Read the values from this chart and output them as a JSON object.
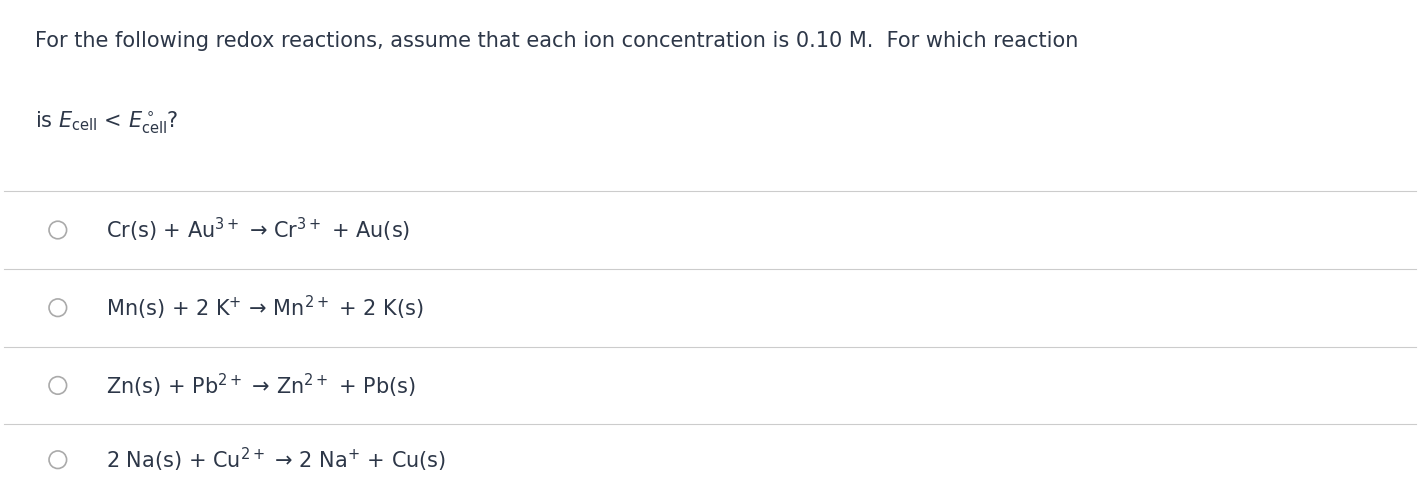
{
  "background_color": "#ffffff",
  "text_color": "#2d3748",
  "line_color": "#cccccc",
  "question_text_line1": "For the following redox reactions, assume that each ion concentration is 0.10 M.  For which reaction",
  "options": [
    "Cr(s) + Au$^{3+}$ → Cr$^{3+}$ + Au(s)",
    "Mn(s) + 2 K$^{+}$ → Mn$^{2+}$ + 2 K(s)",
    "Zn(s) + Pb$^{2+}$ → Zn$^{2+}$ + Pb(s)",
    "2 Na(s) + Cu$^{2+}$ → 2 Na$^{+}$ + Cu(s)"
  ],
  "circle_color": "#aaaaaa",
  "font_size_question": 15,
  "font_size_options": 15,
  "fig_width": 14.2,
  "fig_height": 4.94
}
